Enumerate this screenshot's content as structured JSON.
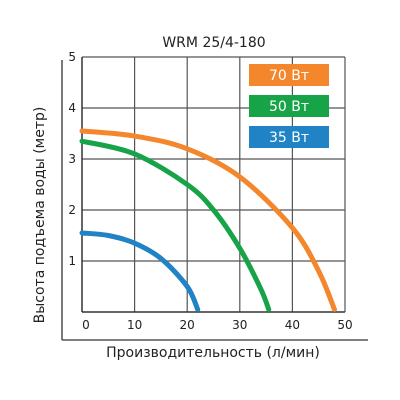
{
  "chart_data": {
    "type": "line",
    "title": "WRM 25/4-180",
    "xlabel": "Производительность (л/мин)",
    "ylabel": "Высота подъема воды (метр)",
    "xlim": [
      0,
      50
    ],
    "ylim": [
      0,
      5
    ],
    "x_ticks": [
      "0",
      "10",
      "20",
      "30",
      "40",
      "50"
    ],
    "y_ticks": [
      "1",
      "2",
      "3",
      "4",
      "5"
    ],
    "grid": true,
    "legend_position": "top-right",
    "series": [
      {
        "name": "70 Вт",
        "color": "#f4862b",
        "points": [
          [
            0,
            3.55
          ],
          [
            10,
            3.45
          ],
          [
            20,
            3.2
          ],
          [
            30,
            2.65
          ],
          [
            40,
            1.65
          ],
          [
            45,
            0.8
          ],
          [
            48,
            0.05
          ]
        ]
      },
      {
        "name": "50 Вт",
        "color": "#17a348",
        "points": [
          [
            0,
            3.35
          ],
          [
            10,
            3.1
          ],
          [
            20,
            2.5
          ],
          [
            25,
            2.0
          ],
          [
            30,
            1.25
          ],
          [
            34,
            0.45
          ],
          [
            35.5,
            0.05
          ]
        ]
      },
      {
        "name": "35 Вт",
        "color": "#1f83c6",
        "points": [
          [
            0,
            1.55
          ],
          [
            5,
            1.5
          ],
          [
            10,
            1.35
          ],
          [
            15,
            1.05
          ],
          [
            20,
            0.5
          ],
          [
            22,
            0.05
          ]
        ]
      }
    ]
  }
}
